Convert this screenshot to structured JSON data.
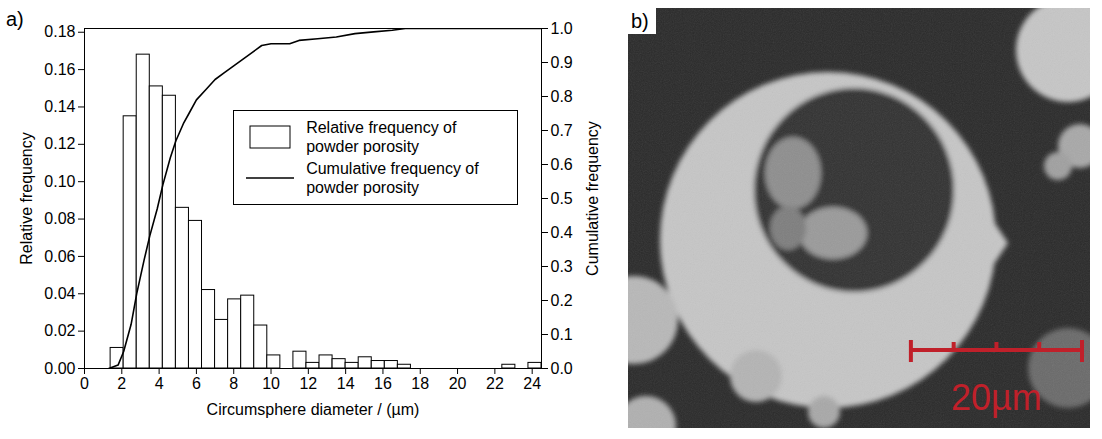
{
  "chart_data": [
    {
      "type": "histogram",
      "title": "a)",
      "x_label": "Circumsphere diameter / (µm)",
      "y_label": "Relative frequency",
      "y2_label": "Cumulative frequency",
      "bins": [
        1.4,
        2.1,
        2.8,
        3.5,
        4.2,
        4.9,
        5.6,
        6.3,
        7.0,
        7.7,
        8.4,
        9.1,
        9.8,
        10.5,
        11.2,
        11.9,
        12.6,
        13.3,
        14.0,
        14.7,
        15.4,
        16.1,
        16.8,
        17.5,
        18.2,
        18.9,
        19.6,
        20.3,
        21.0,
        21.7,
        22.4,
        23.1,
        23.8,
        24.5
      ],
      "series": [
        {
          "name": "Relative frequency of powder porosity",
          "type": "bar",
          "color": "#ffffff",
          "values": [
            0.011,
            0.135,
            0.168,
            0.151,
            0.146,
            0.086,
            0.079,
            0.042,
            0.026,
            0.037,
            0.039,
            0.023,
            0.007,
            0,
            0.009,
            0.003,
            0.007,
            0.005,
            0.003,
            0.006,
            0.004,
            0.004,
            0.002,
            0,
            0,
            0,
            0,
            0,
            0,
            0,
            0.002,
            0,
            0.003
          ]
        },
        {
          "name": "Cumulative frequency of powder porosity",
          "type": "line",
          "color": "#000000",
          "axis": "y2",
          "x": [
            1.3,
            1.8,
            2.1,
            2.5,
            2.8,
            3.2,
            3.5,
            3.9,
            4.2,
            4.6,
            4.9,
            5.3,
            5.6,
            6.0,
            6.5,
            7.0,
            7.5,
            8.0,
            8.5,
            9.0,
            9.5,
            10.0,
            11.0,
            11.5,
            12.5,
            13.5,
            14.5,
            15.5,
            16.5,
            17.2,
            24.5
          ],
          "values": [
            0,
            0.01,
            0.05,
            0.13,
            0.22,
            0.32,
            0.39,
            0.47,
            0.54,
            0.62,
            0.67,
            0.72,
            0.75,
            0.79,
            0.82,
            0.85,
            0.87,
            0.89,
            0.91,
            0.93,
            0.95,
            0.955,
            0.955,
            0.965,
            0.97,
            0.975,
            0.985,
            0.99,
            0.995,
            1.0,
            1.0
          ]
        }
      ],
      "xlim": [
        0,
        24.5
      ],
      "xticks": [
        0,
        2,
        4,
        6,
        8,
        10,
        12,
        14,
        16,
        18,
        20,
        22,
        24
      ],
      "ylim": [
        0,
        0.182
      ],
      "yticks": [
        {
          "value": 0,
          "label": "0.00"
        },
        0.02,
        0.04,
        0.06,
        0.08,
        {
          "value": 0.1,
          "label": "0.10"
        },
        0.12,
        0.14,
        0.16,
        0.18
      ],
      "y2lim": [
        0,
        1.0
      ],
      "y2ticks": [
        {
          "value": 0,
          "label": "0.0"
        },
        0.1,
        0.2,
        0.3,
        0.4,
        0.5,
        0.6,
        0.7,
        0.8,
        0.9,
        {
          "value": 1,
          "label": "1.0"
        }
      ],
      "grid": false,
      "legend": "right"
    },
    {
      "type": "image",
      "title": "b)",
      "xlim": [
        0,
        54
      ],
      "scale_bar": {
        "ticks": [
          0,
          5,
          10,
          15,
          20
        ],
        "label": "20µm",
        "color": "#c0202a"
      }
    }
  ]
}
